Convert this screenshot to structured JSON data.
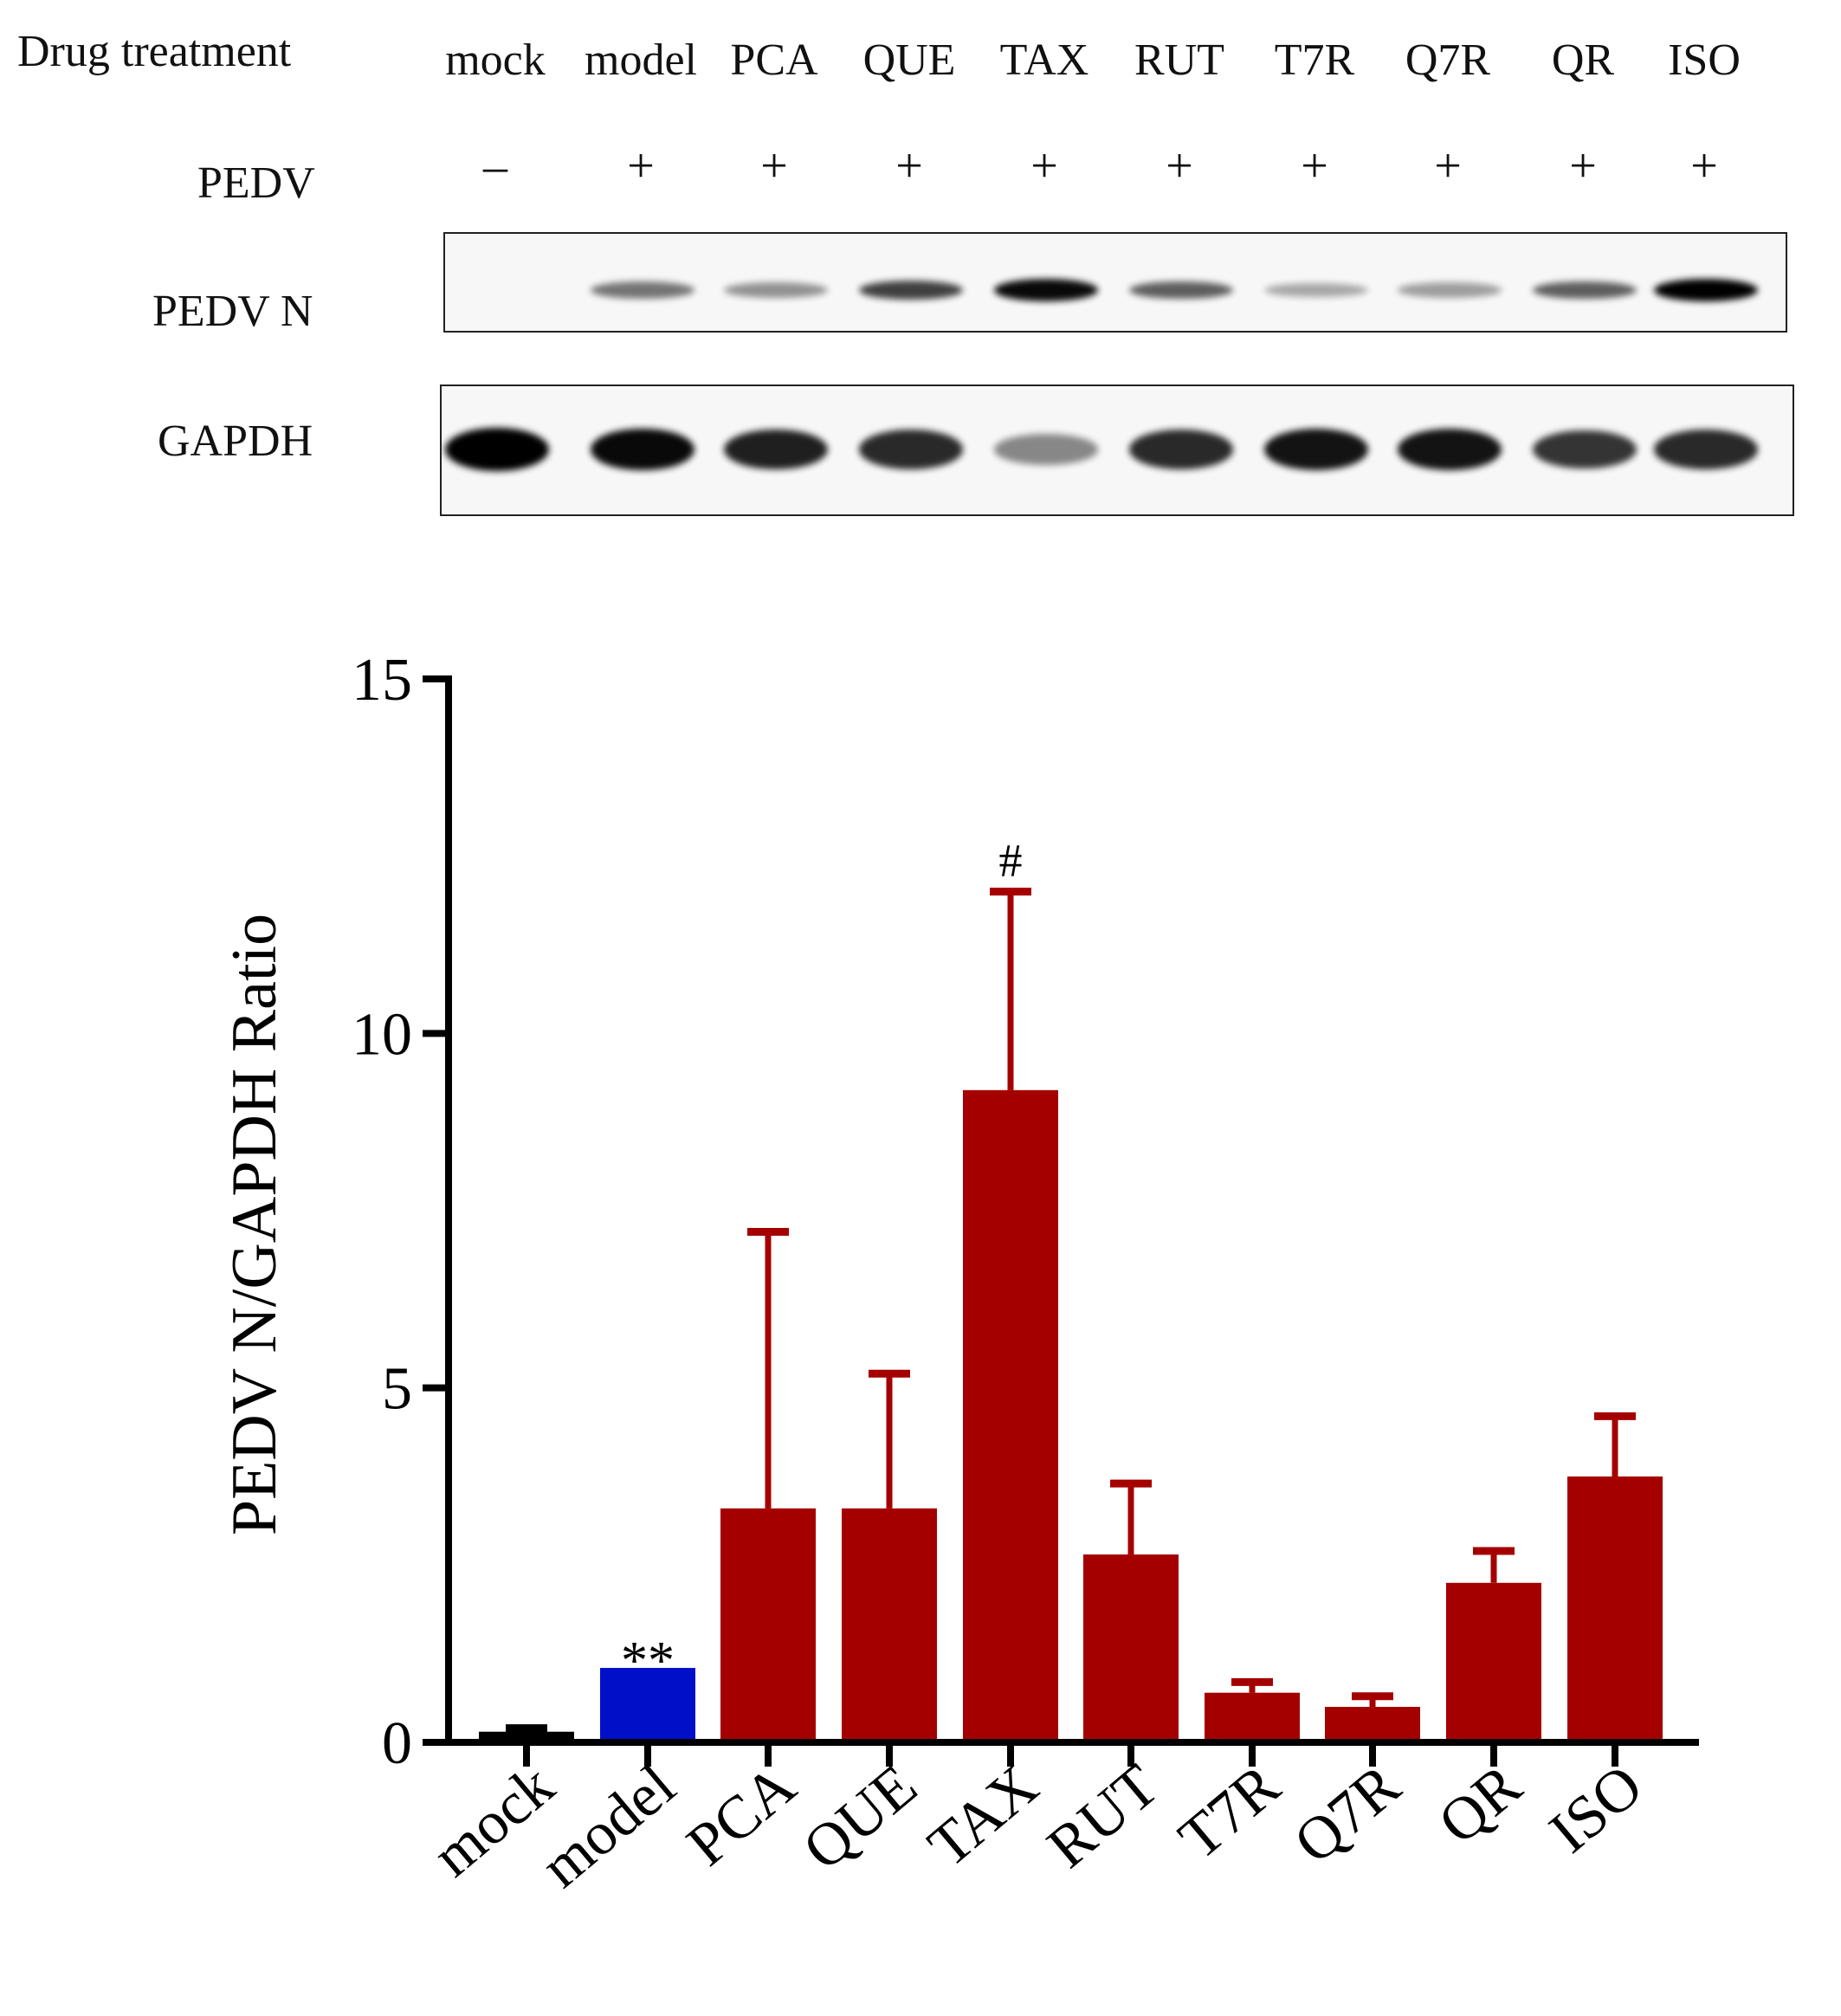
{
  "blot": {
    "header_label": "Drug treatment",
    "infection_label": "PEDV",
    "lanes": [
      "mock",
      "model",
      "PCA",
      "QUE",
      "TAX",
      "RUT",
      "T7R",
      "Q7R",
      "QR",
      "ISO"
    ],
    "infection_signs": [
      "–",
      "+",
      "+",
      "+",
      "+",
      "+",
      "+",
      "+",
      "+",
      "+"
    ],
    "rows": [
      {
        "label": "PEDV N",
        "band_intensity": [
          0.0,
          0.45,
          0.3,
          0.7,
          0.95,
          0.55,
          0.2,
          0.25,
          0.55,
          1.0
        ]
      },
      {
        "label": "GAPDH",
        "band_intensity": [
          1.0,
          0.95,
          0.85,
          0.8,
          0.35,
          0.8,
          0.9,
          0.9,
          0.75,
          0.8
        ]
      }
    ],
    "band_color": "#000000"
  },
  "chart_data": {
    "type": "bar",
    "categories": [
      "mock",
      "model",
      "PCA",
      "QUE",
      "TAX",
      "RUT",
      "T7R",
      "Q7R",
      "QR",
      "ISO"
    ],
    "values": [
      0.15,
      1.05,
      3.3,
      3.3,
      9.2,
      2.65,
      0.7,
      0.5,
      2.25,
      3.75
    ],
    "errors": [
      0.05,
      0.0,
      3.9,
      1.9,
      2.8,
      1.0,
      0.15,
      0.15,
      0.45,
      0.85
    ],
    "bar_colors": [
      "#000000",
      "#0010c8",
      "#a50000",
      "#a50000",
      "#a50000",
      "#a50000",
      "#a50000",
      "#a50000",
      "#a50000",
      "#a50000"
    ],
    "annotations": [
      {
        "category": "model",
        "text": "**"
      },
      {
        "category": "TAX",
        "text": "#"
      }
    ],
    "ylabel": "PEDV N/GAPDH Ratio",
    "xlabel": "",
    "ylim": [
      0,
      15
    ],
    "yticks": [
      0,
      5,
      10,
      15
    ],
    "grid": false
  }
}
